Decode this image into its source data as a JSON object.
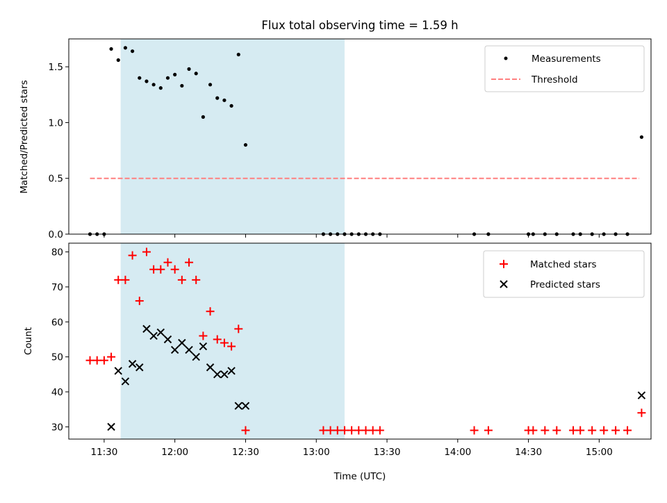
{
  "chart_data": {
    "title": "Flux total observing time = 1.59 h",
    "xlabel": "Time (UTC)",
    "x_ticks": [
      "11:30",
      "12:00",
      "12:30",
      "13:00",
      "13:30",
      "14:00",
      "14:30",
      "15:00"
    ],
    "x_range": [
      "11:15",
      "15:22"
    ],
    "shaded_interval": {
      "start": "11:37",
      "end": "13:12",
      "color": "#add8e6"
    },
    "panels": [
      {
        "type": "scatter",
        "ylabel": "Matched/Predicted stars",
        "ylim": [
          0,
          1.75
        ],
        "y_ticks": [
          "0.0",
          "0.5",
          "1.0",
          "1.5"
        ],
        "legend": {
          "placement": "top-right",
          "entries": [
            "Measurements",
            "Threshold"
          ]
        },
        "series": [
          {
            "name": "Measurements",
            "marker": "dot",
            "color": "#000000",
            "points": [
              [
                "11:24",
                0
              ],
              [
                "11:27",
                0
              ],
              [
                "11:30",
                0
              ],
              [
                "11:33",
                1.66
              ],
              [
                "11:36",
                1.56
              ],
              [
                "11:39",
                1.67
              ],
              [
                "11:42",
                1.64
              ],
              [
                "11:45",
                1.4
              ],
              [
                "11:48",
                1.37
              ],
              [
                "11:51",
                1.34
              ],
              [
                "11:54",
                1.31
              ],
              [
                "11:57",
                1.4
              ],
              [
                "12:00",
                1.43
              ],
              [
                "12:03",
                1.33
              ],
              [
                "12:06",
                1.48
              ],
              [
                "12:09",
                1.44
              ],
              [
                "12:12",
                1.05
              ],
              [
                "12:15",
                1.34
              ],
              [
                "12:18",
                1.22
              ],
              [
                "12:21",
                1.2
              ],
              [
                "12:24",
                1.15
              ],
              [
                "12:27",
                1.61
              ],
              [
                "12:30",
                0.8
              ],
              [
                "13:03",
                0
              ],
              [
                "13:06",
                0
              ],
              [
                "13:09",
                0
              ],
              [
                "13:12",
                0
              ],
              [
                "13:15",
                0
              ],
              [
                "13:18",
                0
              ],
              [
                "13:21",
                0
              ],
              [
                "13:24",
                0
              ],
              [
                "13:27",
                0
              ],
              [
                "14:07",
                0
              ],
              [
                "14:13",
                0
              ],
              [
                "14:30",
                0
              ],
              [
                "14:32",
                0
              ],
              [
                "14:37",
                0
              ],
              [
                "14:42",
                0
              ],
              [
                "14:49",
                0
              ],
              [
                "14:52",
                0
              ],
              [
                "14:57",
                0
              ],
              [
                "15:02",
                0
              ],
              [
                "15:07",
                0
              ],
              [
                "15:12",
                0
              ],
              [
                "15:18",
                0.87
              ]
            ]
          },
          {
            "name": "Threshold",
            "style": "dashed",
            "color": "#ff7f7f",
            "value": 0.5,
            "x_start": "11:24",
            "x_end": "15:17"
          }
        ]
      },
      {
        "type": "scatter",
        "ylabel": "Count",
        "ylim": [
          26.5,
          82.5
        ],
        "y_ticks": [
          "30",
          "40",
          "50",
          "60",
          "70",
          "80"
        ],
        "legend": {
          "placement": "top-right",
          "entries": [
            "Matched stars",
            "Predicted stars"
          ]
        },
        "series": [
          {
            "name": "Matched stars",
            "marker": "plus",
            "color": "#ff0000",
            "points": [
              [
                "11:24",
                49
              ],
              [
                "11:27",
                49
              ],
              [
                "11:30",
                49
              ],
              [
                "11:33",
                50
              ],
              [
                "11:36",
                72
              ],
              [
                "11:39",
                72
              ],
              [
                "11:42",
                79
              ],
              [
                "11:45",
                66
              ],
              [
                "11:48",
                80
              ],
              [
                "11:51",
                75
              ],
              [
                "11:54",
                75
              ],
              [
                "11:57",
                77
              ],
              [
                "12:00",
                75
              ],
              [
                "12:03",
                72
              ],
              [
                "12:06",
                77
              ],
              [
                "12:09",
                72
              ],
              [
                "12:12",
                56
              ],
              [
                "12:15",
                63
              ],
              [
                "12:18",
                55
              ],
              [
                "12:21",
                54
              ],
              [
                "12:24",
                53
              ],
              [
                "12:27",
                58
              ],
              [
                "12:30",
                29
              ],
              [
                "13:03",
                29
              ],
              [
                "13:06",
                29
              ],
              [
                "13:09",
                29
              ],
              [
                "13:12",
                29
              ],
              [
                "13:15",
                29
              ],
              [
                "13:18",
                29
              ],
              [
                "13:21",
                29
              ],
              [
                "13:24",
                29
              ],
              [
                "13:27",
                29
              ],
              [
                "14:07",
                29
              ],
              [
                "14:13",
                29
              ],
              [
                "14:30",
                29
              ],
              [
                "14:32",
                29
              ],
              [
                "14:37",
                29
              ],
              [
                "14:42",
                29
              ],
              [
                "14:49",
                29
              ],
              [
                "14:52",
                29
              ],
              [
                "14:57",
                29
              ],
              [
                "15:02",
                29
              ],
              [
                "15:07",
                29
              ],
              [
                "15:12",
                29
              ],
              [
                "15:18",
                34
              ]
            ]
          },
          {
            "name": "Predicted stars",
            "marker": "x",
            "color": "#000000",
            "points": [
              [
                "11:33",
                30
              ],
              [
                "11:36",
                46
              ],
              [
                "11:39",
                43
              ],
              [
                "11:42",
                48
              ],
              [
                "11:45",
                47
              ],
              [
                "11:48",
                58
              ],
              [
                "11:51",
                56
              ],
              [
                "11:54",
                57
              ],
              [
                "11:57",
                55
              ],
              [
                "12:00",
                52
              ],
              [
                "12:03",
                54
              ],
              [
                "12:06",
                52
              ],
              [
                "12:09",
                50
              ],
              [
                "12:12",
                53
              ],
              [
                "12:15",
                47
              ],
              [
                "12:18",
                45
              ],
              [
                "12:21",
                45
              ],
              [
                "12:24",
                46
              ],
              [
                "12:27",
                36
              ],
              [
                "12:30",
                36
              ],
              [
                "15:18",
                39
              ]
            ]
          }
        ]
      }
    ]
  }
}
